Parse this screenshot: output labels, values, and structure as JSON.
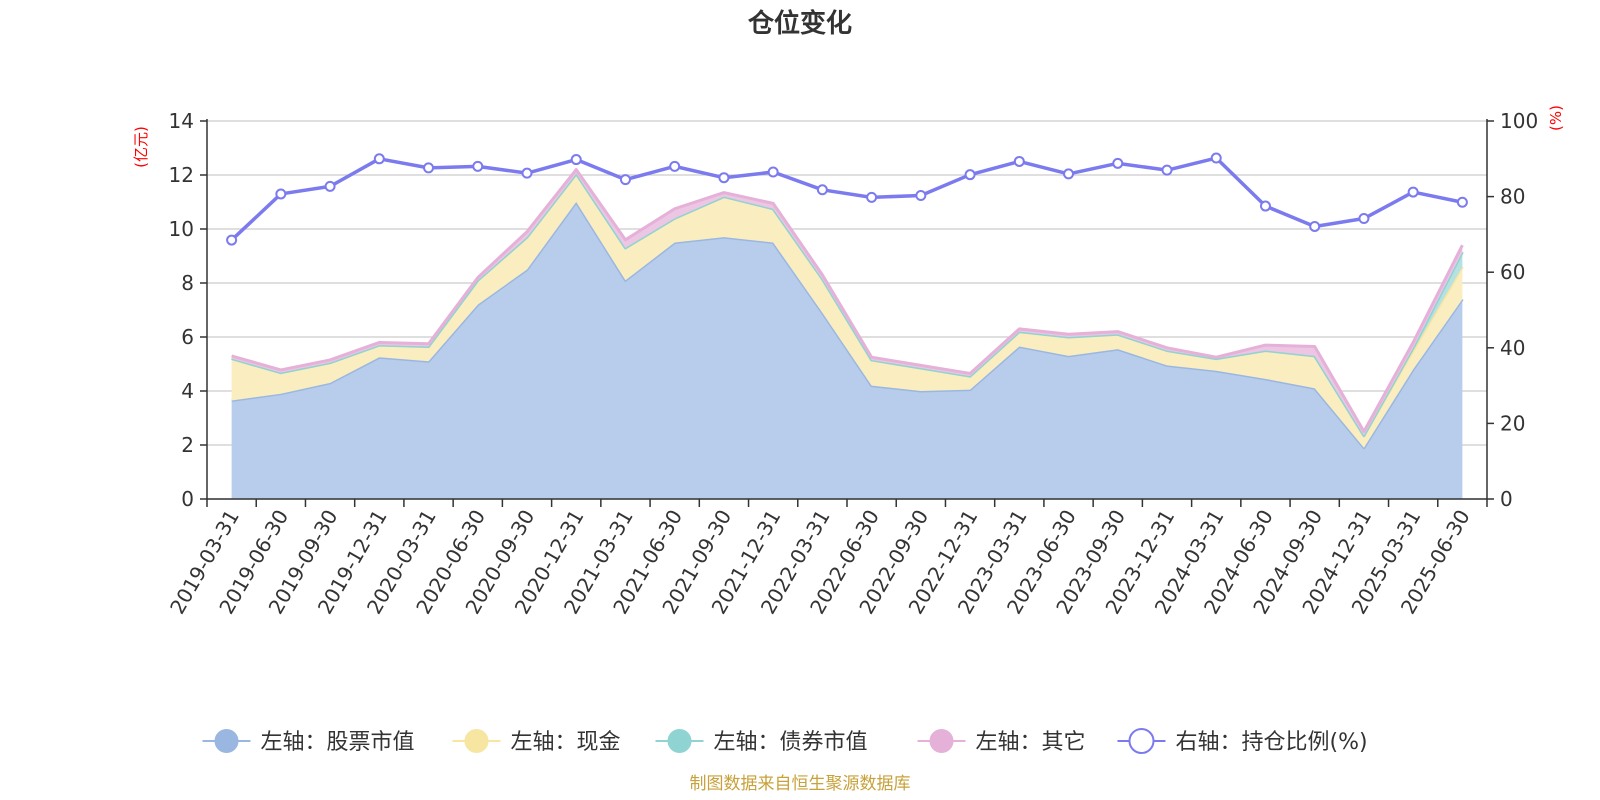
{
  "chart_data": {
    "type": "area",
    "title": "仓位变化",
    "left_axis": {
      "unit": "(亿元)",
      "range": [
        0,
        14
      ],
      "ticks": [
        0,
        2,
        4,
        6,
        8,
        10,
        12,
        14
      ]
    },
    "right_axis": {
      "unit": "(%)",
      "range": [
        0,
        100
      ],
      "ticks": [
        0,
        20,
        40,
        60,
        80,
        100
      ]
    },
    "categories": [
      "2019-03-31",
      "2019-06-30",
      "2019-09-30",
      "2019-12-31",
      "2020-03-31",
      "2020-06-30",
      "2020-09-30",
      "2020-12-31",
      "2021-03-31",
      "2021-06-30",
      "2021-09-30",
      "2021-12-31",
      "2022-03-31",
      "2022-06-30",
      "2022-09-30",
      "2022-12-31",
      "2023-03-31",
      "2023-06-30",
      "2023-09-30",
      "2023-12-31",
      "2024-03-31",
      "2024-06-30",
      "2024-09-30",
      "2024-12-31",
      "2025-03-31",
      "2025-06-30"
    ],
    "series": [
      {
        "name": "左轴：股票市值",
        "axis": "left",
        "kind": "stacked-area",
        "color": "#9ab7e2",
        "fill": "#b8cdeb",
        "values": [
          3.65,
          3.9,
          4.3,
          5.25,
          5.1,
          7.2,
          8.5,
          11.0,
          8.1,
          9.5,
          9.7,
          9.5,
          6.9,
          4.2,
          4.0,
          4.05,
          5.65,
          5.3,
          5.55,
          4.95,
          4.75,
          4.45,
          4.1,
          1.9,
          4.8,
          7.4
        ]
      },
      {
        "name": "左轴：现金",
        "axis": "left",
        "kind": "stacked-area",
        "color": "#f7e5a2",
        "fill": "#faedbf",
        "values": [
          1.55,
          0.78,
          0.75,
          0.45,
          0.55,
          0.9,
          1.2,
          1.05,
          1.2,
          0.9,
          1.5,
          1.25,
          1.25,
          0.95,
          0.85,
          0.5,
          0.55,
          0.7,
          0.55,
          0.55,
          0.45,
          1.05,
          1.2,
          0.45,
          0.7,
          1.2
        ]
      },
      {
        "name": "左轴：债券市值",
        "axis": "left",
        "kind": "stacked-area",
        "color": "#8fd3d3",
        "fill": "#b4e1e1",
        "values": [
          0,
          0,
          0,
          0,
          0,
          0,
          0,
          0,
          0,
          0,
          0,
          0,
          0,
          0,
          0,
          0,
          0,
          0,
          0,
          0,
          0,
          0,
          0,
          0,
          0.1,
          0.55
        ]
      },
      {
        "name": "左轴：其它",
        "axis": "left",
        "kind": "stacked-area",
        "color": "#e5b1d8",
        "fill": "#ecc6e3",
        "values": [
          0.1,
          0.1,
          0.1,
          0.1,
          0.1,
          0.1,
          0.2,
          0.15,
          0.3,
          0.35,
          0.15,
          0.2,
          0.15,
          0.1,
          0.1,
          0.1,
          0.1,
          0.1,
          0.1,
          0.1,
          0.05,
          0.2,
          0.35,
          0.15,
          0.2,
          0.25
        ]
      },
      {
        "name": "右轴：持仓比例(%)",
        "axis": "right",
        "kind": "line",
        "color": "#7b7bef",
        "values": [
          68.5,
          80.7,
          82.7,
          90.0,
          87.6,
          88.0,
          86.2,
          89.8,
          84.5,
          88.0,
          85.0,
          86.5,
          81.8,
          79.8,
          80.3,
          85.8,
          89.3,
          86.0,
          88.8,
          87.0,
          90.2,
          77.5,
          72.1,
          74.2,
          81.2,
          78.5
        ]
      }
    ]
  },
  "footer": {
    "source": "制图数据来自恒生聚源数据库"
  }
}
